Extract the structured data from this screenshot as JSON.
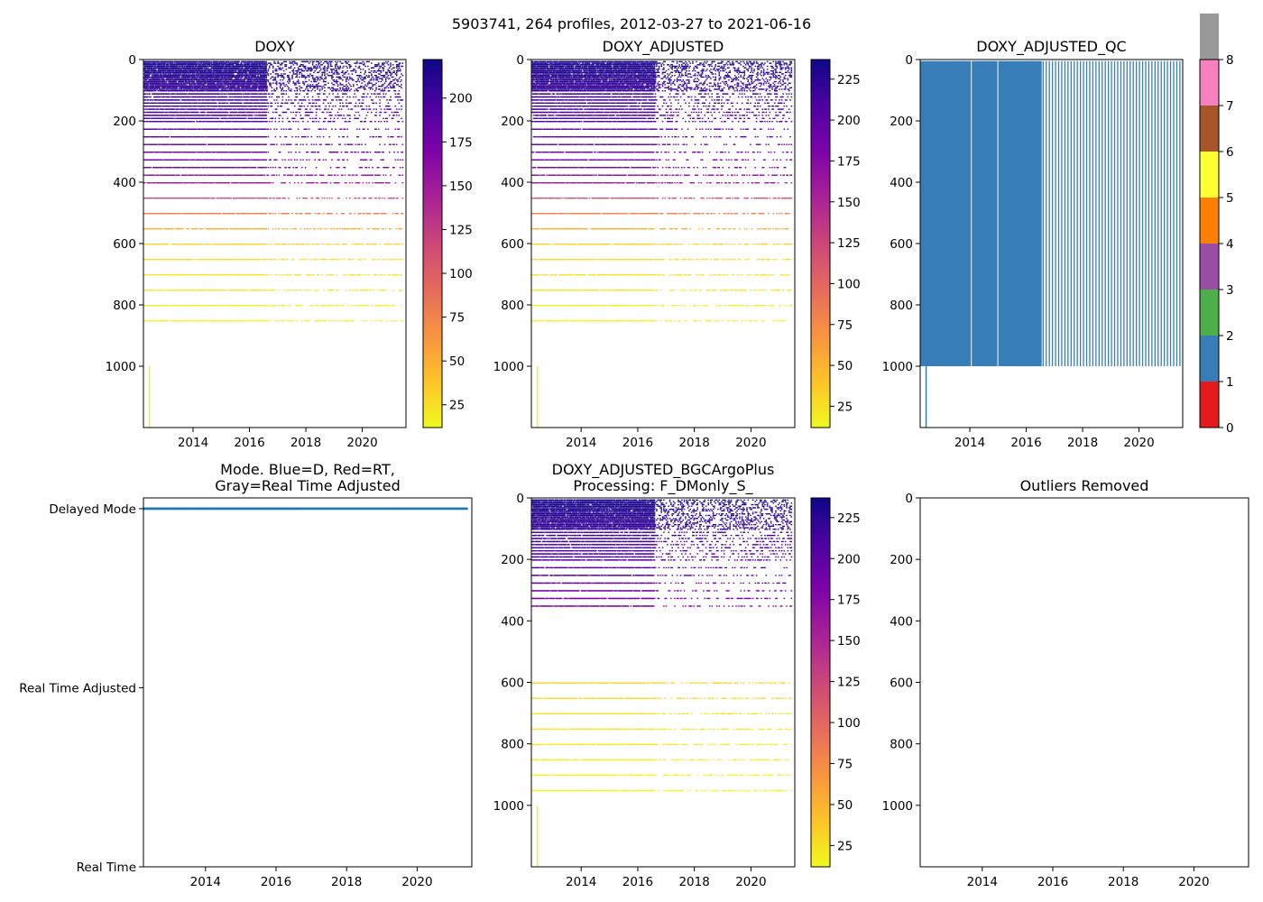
{
  "suptitle": "5903741, 264 profiles, 2012-03-27 to 2021-06-16",
  "chart_data": [
    {
      "id": "doxy",
      "type": "heatmap",
      "title": "DOXY",
      "x_range": [
        2012.24,
        2021.55
      ],
      "x_ticks": [
        "2014",
        "2016",
        "2018",
        "2020"
      ],
      "x_tick_values": [
        2014,
        2016,
        2018,
        2020
      ],
      "y_range": [
        0,
        1200
      ],
      "y_inverted": true,
      "y_ticks": [
        "0",
        "200",
        "400",
        "600",
        "800",
        "1000"
      ],
      "y_tick_values": [
        0,
        200,
        400,
        600,
        800,
        1000
      ],
      "colorbar": {
        "cmap": "plasma_r",
        "range": [
          12,
          222
        ],
        "ticks": [
          "25",
          "50",
          "75",
          "100",
          "125",
          "150",
          "175",
          "200"
        ],
        "tick_values": [
          25,
          50,
          75,
          100,
          125,
          150,
          175,
          200
        ]
      },
      "dense_until": 2016.6,
      "deep_line": {
        "x": 2012.45,
        "depth_from": 1000,
        "depth_to": 1200
      },
      "profile_depths": [
        5,
        10,
        15,
        20,
        25,
        30,
        35,
        40,
        45,
        50,
        55,
        60,
        65,
        70,
        75,
        80,
        85,
        90,
        95,
        100,
        110,
        120,
        130,
        140,
        150,
        160,
        170,
        180,
        190,
        200,
        225,
        250,
        275,
        300,
        325,
        350,
        375,
        400,
        450,
        500,
        550,
        600,
        650,
        700,
        750,
        800,
        850
      ],
      "oxygen_profile": {
        "depth": [
          0,
          100,
          250,
          350,
          400,
          450,
          500,
          550,
          600,
          700,
          850
        ],
        "value": [
          218,
          205,
          185,
          170,
          150,
          110,
          80,
          50,
          30,
          22,
          15
        ]
      }
    },
    {
      "id": "doxy_adjusted",
      "type": "heatmap",
      "title": "DOXY_ADJUSTED",
      "x_range": [
        2012.24,
        2021.55
      ],
      "x_ticks": [
        "2014",
        "2016",
        "2018",
        "2020"
      ],
      "x_tick_values": [
        2014,
        2016,
        2018,
        2020
      ],
      "y_range": [
        0,
        1200
      ],
      "y_inverted": true,
      "y_ticks": [
        "0",
        "200",
        "400",
        "600",
        "800",
        "1000"
      ],
      "y_tick_values": [
        0,
        200,
        400,
        600,
        800,
        1000
      ],
      "colorbar": {
        "cmap": "plasma_r",
        "range": [
          12,
          237
        ],
        "ticks": [
          "25",
          "50",
          "75",
          "100",
          "125",
          "150",
          "175",
          "200",
          "225"
        ],
        "tick_values": [
          25,
          50,
          75,
          100,
          125,
          150,
          175,
          200,
          225
        ]
      },
      "dense_until": 2016.6,
      "deep_line": {
        "x": 2012.45,
        "depth_from": 1000,
        "depth_to": 1200
      },
      "profile_depths": [
        5,
        10,
        15,
        20,
        25,
        30,
        35,
        40,
        45,
        50,
        55,
        60,
        65,
        70,
        75,
        80,
        85,
        90,
        95,
        100,
        110,
        120,
        130,
        140,
        150,
        160,
        170,
        180,
        190,
        200,
        225,
        250,
        275,
        300,
        325,
        350,
        375,
        400,
        450,
        500,
        550,
        600,
        650,
        700,
        750,
        800,
        850
      ],
      "oxygen_profile": {
        "depth": [
          0,
          100,
          250,
          350,
          400,
          450,
          500,
          550,
          600,
          700,
          850
        ],
        "value": [
          232,
          218,
          196,
          180,
          160,
          115,
          82,
          52,
          32,
          23,
          15
        ]
      }
    },
    {
      "id": "doxy_adjusted_qc",
      "type": "heatmap",
      "title": "DOXY_ADJUSTED_QC",
      "x_range": [
        2012.24,
        2021.55
      ],
      "x_ticks": [
        "2014",
        "2016",
        "2018",
        "2020"
      ],
      "x_tick_values": [
        2014,
        2016,
        2018,
        2020
      ],
      "y_range": [
        0,
        1200
      ],
      "y_inverted": true,
      "y_ticks": [
        "0",
        "200",
        "400",
        "600",
        "800",
        "1000"
      ],
      "y_tick_values": [
        0,
        200,
        400,
        600,
        800,
        1000
      ],
      "qc_value": 1,
      "qc_depth_range": [
        5,
        1000
      ],
      "solid_segments": [
        [
          2012.24,
          2014.04
        ],
        [
          2014.07,
          2014.98
        ],
        [
          2015.01,
          2016.55
        ]
      ],
      "profile_lines_from": 2016.6,
      "profile_lines_to": 2021.45,
      "profile_line_count": 45,
      "deep_line": {
        "x": 2012.45,
        "depth_from": 1000,
        "depth_to": 1200
      },
      "colorbar": {
        "type": "categorical",
        "range": [
          0,
          8
        ],
        "ticks": [
          "0",
          "1",
          "2",
          "3",
          "4",
          "5",
          "6",
          "7",
          "8"
        ],
        "tick_values": [
          0,
          1,
          2,
          3,
          4,
          5,
          6,
          7,
          8
        ],
        "colors": [
          "#e41a1c",
          "#377eb8",
          "#4daf4a",
          "#984ea3",
          "#ff7f00",
          "#ffff33",
          "#a65628",
          "#f781bf",
          "#999999"
        ]
      }
    },
    {
      "id": "mode",
      "type": "scatter",
      "title_lines": [
        "Mode. Blue=D, Red=RT,",
        "Gray=Real Time Adjusted"
      ],
      "x_range": [
        2012.24,
        2021.55
      ],
      "x_ticks": [
        "2014",
        "2016",
        "2018",
        "2020"
      ],
      "x_tick_values": [
        2014,
        2016,
        2018,
        2020
      ],
      "categories": [
        "Delayed Mode",
        "Real Time Adjusted",
        "Real Time"
      ],
      "category_values": [
        2,
        1,
        0
      ],
      "y_range": [
        0,
        2.06
      ],
      "series": [
        {
          "name": "D",
          "color": "#1f77b4",
          "y": 2,
          "x_from": 2012.24,
          "x_to": 2021.45,
          "count": 264,
          "dense_until": 2016.6
        }
      ]
    },
    {
      "id": "doxy_adjusted_bgcargoplus",
      "type": "heatmap",
      "title_lines": [
        "DOXY_ADJUSTED_BGCArgoPlus",
        "Processing: F_DMonly_S_"
      ],
      "x_range": [
        2012.24,
        2021.55
      ],
      "x_ticks": [
        "2014",
        "2016",
        "2018",
        "2020"
      ],
      "x_tick_values": [
        2014,
        2016,
        2018,
        2020
      ],
      "y_range": [
        0,
        1200
      ],
      "y_inverted": true,
      "y_ticks": [
        "0",
        "200",
        "400",
        "600",
        "800",
        "1000"
      ],
      "y_tick_values": [
        0,
        200,
        400,
        600,
        800,
        1000
      ],
      "colorbar": {
        "cmap": "plasma_r",
        "range": [
          12,
          237
        ],
        "ticks": [
          "25",
          "50",
          "75",
          "100",
          "125",
          "150",
          "175",
          "200",
          "225"
        ],
        "tick_values": [
          25,
          50,
          75,
          100,
          125,
          150,
          175,
          200,
          225
        ]
      },
      "dense_until": 2016.6,
      "deep_line": {
        "x": 2012.45,
        "depth_from": 1000,
        "depth_to": 1200
      },
      "profile_depths": [
        5,
        10,
        15,
        20,
        25,
        30,
        35,
        40,
        45,
        50,
        55,
        60,
        65,
        70,
        75,
        80,
        85,
        90,
        95,
        100,
        110,
        120,
        130,
        140,
        150,
        160,
        170,
        180,
        190,
        200,
        225,
        250,
        275,
        300,
        325,
        350,
        600,
        650,
        700,
        750,
        800,
        850,
        900,
        950
      ],
      "oxygen_profile": {
        "depth": [
          0,
          100,
          250,
          350,
          400,
          550,
          600,
          700,
          850,
          950
        ],
        "value": [
          232,
          218,
          196,
          180,
          165,
          40,
          32,
          23,
          17,
          15
        ]
      }
    },
    {
      "id": "outliers_removed",
      "type": "scatter",
      "title": "Outliers Removed",
      "x_range": [
        2012.24,
        2021.55
      ],
      "x_ticks": [
        "2014",
        "2016",
        "2018",
        "2020"
      ],
      "x_tick_values": [
        2014,
        2016,
        2018,
        2020
      ],
      "y_range": [
        0,
        1200
      ],
      "y_inverted": true,
      "y_ticks": [
        "0",
        "200",
        "400",
        "600",
        "800",
        "1000"
      ],
      "y_tick_values": [
        0,
        200,
        400,
        600,
        800,
        1000
      ],
      "points": []
    }
  ]
}
